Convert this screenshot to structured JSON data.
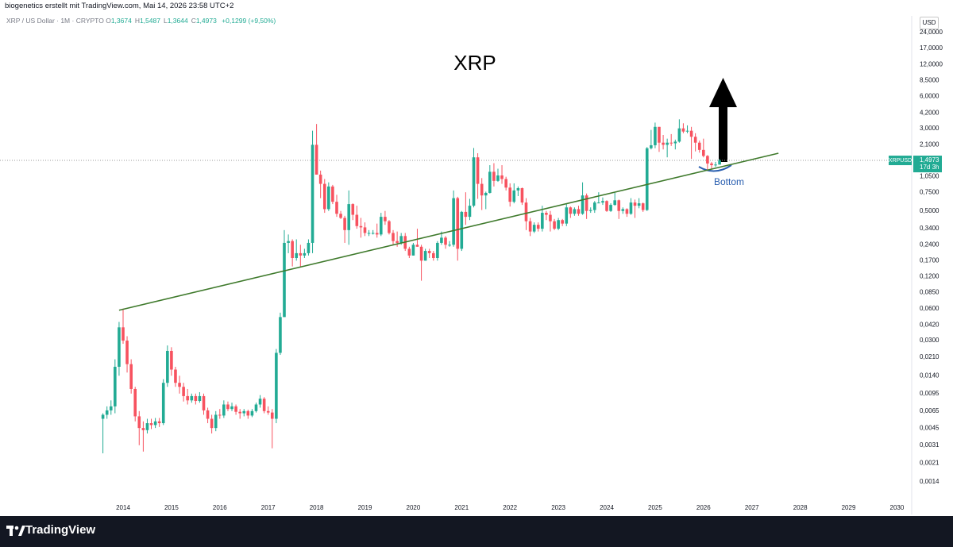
{
  "header": {
    "text": "biogenetics erstellt mit TradingView.com, Mai 14, 2026 23:58 UTC+2",
    "legend": {
      "symbol": "XRP / US Dollar · 1M · CRYPTO",
      "items": [
        {
          "key": "O",
          "value": "1,3674"
        },
        {
          "key": "H",
          "value": "1,5487"
        },
        {
          "key": "L",
          "value": "1,3644"
        },
        {
          "key": "C",
          "value": "1,4973"
        }
      ],
      "change": "+0,1299 (+9,50%)"
    },
    "currency": "USD"
  },
  "footer": {
    "logo": "TradingView"
  },
  "chart_data": {
    "type": "candlestick",
    "title": "XRP",
    "log_scale": true,
    "grid": false,
    "up_color": "#22ab94",
    "down_color": "#f7525f",
    "xlim": [
      2011.455,
      2030.305
    ],
    "xticks": [
      2014,
      2015,
      2016,
      2017,
      2018,
      2019,
      2020,
      2021,
      2022,
      2023,
      2024,
      2025,
      2026,
      2027,
      2028,
      2029,
      2030
    ],
    "ylim": [
      0.00069,
      29
    ],
    "yticks": [
      {
        "value": 24,
        "label": "24,0000"
      },
      {
        "value": 17,
        "label": "17,0000"
      },
      {
        "value": 12,
        "label": "12,0000"
      },
      {
        "value": 8.5,
        "label": "8,5000"
      },
      {
        "value": 6,
        "label": "6,0000"
      },
      {
        "value": 4.2,
        "label": "4,2000"
      },
      {
        "value": 3,
        "label": "3,0000"
      },
      {
        "value": 2.1,
        "label": "2,1000"
      },
      {
        "value": 1.05,
        "label": "1,0500"
      },
      {
        "value": 0.75,
        "label": "0,7500"
      },
      {
        "value": 0.5,
        "label": "0,5000"
      },
      {
        "value": 0.34,
        "label": "0,3400"
      },
      {
        "value": 0.24,
        "label": "0,2400"
      },
      {
        "value": 0.17,
        "label": "0,1700"
      },
      {
        "value": 0.12,
        "label": "0,1200"
      },
      {
        "value": 0.085,
        "label": "0,0850"
      },
      {
        "value": 0.06,
        "label": "0,0600"
      },
      {
        "value": 0.042,
        "label": "0,0420"
      },
      {
        "value": 0.03,
        "label": "0,0300"
      },
      {
        "value": 0.021,
        "label": "0,0210"
      },
      {
        "value": 0.014,
        "label": "0,0140"
      },
      {
        "value": 0.0095,
        "label": "0,0095"
      },
      {
        "value": 0.0065,
        "label": "0,0065"
      },
      {
        "value": 0.0045,
        "label": "0,0045"
      },
      {
        "value": 0.0031,
        "label": "0,0031"
      },
      {
        "value": 0.0021,
        "label": "0,0021"
      },
      {
        "value": 0.0014,
        "label": "0,0014"
      }
    ],
    "price_label": {
      "symbol": "XRPUSD",
      "price": "1,4973",
      "countdown": "17d 3h",
      "color": "#22ab94"
    },
    "trendline": {
      "x": [
        2013.917,
        2027.55
      ],
      "values": [
        0.058,
        1.75
      ],
      "color": "#3f7a2c"
    },
    "annotation": {
      "text": "Bottom",
      "color": "#2a5fb0"
    },
    "x": [
      2013.583,
      2013.667,
      2013.75,
      2013.833,
      2013.917,
      2014.0,
      2014.083,
      2014.167,
      2014.25,
      2014.333,
      2014.417,
      2014.5,
      2014.583,
      2014.667,
      2014.75,
      2014.833,
      2014.917,
      2015.0,
      2015.083,
      2015.167,
      2015.25,
      2015.333,
      2015.417,
      2015.5,
      2015.583,
      2015.667,
      2015.75,
      2015.833,
      2015.917,
      2016.0,
      2016.083,
      2016.167,
      2016.25,
      2016.333,
      2016.417,
      2016.5,
      2016.583,
      2016.667,
      2016.75,
      2016.833,
      2016.917,
      2017.0,
      2017.083,
      2017.167,
      2017.25,
      2017.333,
      2017.417,
      2017.5,
      2017.583,
      2017.667,
      2017.75,
      2017.833,
      2017.917,
      2018.0,
      2018.083,
      2018.167,
      2018.25,
      2018.333,
      2018.417,
      2018.5,
      2018.583,
      2018.667,
      2018.75,
      2018.833,
      2018.917,
      2019.0,
      2019.083,
      2019.167,
      2019.25,
      2019.333,
      2019.417,
      2019.5,
      2019.583,
      2019.667,
      2019.75,
      2019.833,
      2019.917,
      2020.0,
      2020.083,
      2020.167,
      2020.25,
      2020.333,
      2020.417,
      2020.5,
      2020.583,
      2020.667,
      2020.75,
      2020.833,
      2020.917,
      2021.0,
      2021.083,
      2021.167,
      2021.25,
      2021.333,
      2021.417,
      2021.5,
      2021.583,
      2021.667,
      2021.75,
      2021.833,
      2021.917,
      2022.0,
      2022.083,
      2022.167,
      2022.25,
      2022.333,
      2022.417,
      2022.5,
      2022.583,
      2022.667,
      2022.75,
      2022.833,
      2022.917,
      2023.0,
      2023.083,
      2023.167,
      2023.25,
      2023.333,
      2023.417,
      2023.5,
      2023.583,
      2023.667,
      2023.75,
      2023.833,
      2023.917,
      2024.0,
      2024.083,
      2024.167,
      2024.25,
      2024.333,
      2024.417,
      2024.5,
      2024.583,
      2024.667,
      2024.75,
      2024.833,
      2024.917,
      2025.0,
      2025.083,
      2025.167,
      2025.25,
      2025.333,
      2025.417,
      2025.5,
      2025.583,
      2025.667,
      2025.75,
      2025.833,
      2025.917,
      2026.0,
      2026.083,
      2026.167,
      2026.25,
      2026.333
    ],
    "candles": [
      [
        0.0055,
        0.0062,
        0.0026,
        0.006
      ],
      [
        0.006,
        0.0072,
        0.0055,
        0.0066
      ],
      [
        0.0066,
        0.0082,
        0.006,
        0.0072
      ],
      [
        0.0072,
        0.02,
        0.0062,
        0.017
      ],
      [
        0.017,
        0.045,
        0.014,
        0.04
      ],
      [
        0.04,
        0.06,
        0.028,
        0.03
      ],
      [
        0.03,
        0.033,
        0.015,
        0.018
      ],
      [
        0.018,
        0.02,
        0.0095,
        0.0105
      ],
      [
        0.0105,
        0.011,
        0.0052,
        0.0058
      ],
      [
        0.0058,
        0.0065,
        0.0031,
        0.0045
      ],
      [
        0.0045,
        0.0052,
        0.0027,
        0.0043
      ],
      [
        0.0043,
        0.0055,
        0.004,
        0.005
      ],
      [
        0.005,
        0.0055,
        0.0044,
        0.0048
      ],
      [
        0.0048,
        0.0056,
        0.0045,
        0.0052
      ],
      [
        0.0052,
        0.0056,
        0.0046,
        0.005
      ],
      [
        0.005,
        0.013,
        0.0048,
        0.012
      ],
      [
        0.012,
        0.027,
        0.011,
        0.024
      ],
      [
        0.024,
        0.026,
        0.014,
        0.016
      ],
      [
        0.016,
        0.017,
        0.011,
        0.012
      ],
      [
        0.012,
        0.014,
        0.0095,
        0.011
      ],
      [
        0.011,
        0.012,
        0.008,
        0.009
      ],
      [
        0.009,
        0.0105,
        0.0075,
        0.0082
      ],
      [
        0.0082,
        0.0095,
        0.0078,
        0.009
      ],
      [
        0.009,
        0.0095,
        0.0075,
        0.0081
      ],
      [
        0.0081,
        0.0098,
        0.0078,
        0.009
      ],
      [
        0.009,
        0.0095,
        0.006,
        0.0066
      ],
      [
        0.0066,
        0.007,
        0.005,
        0.0055
      ],
      [
        0.0055,
        0.006,
        0.004,
        0.0045
      ],
      [
        0.0045,
        0.0065,
        0.0042,
        0.006
      ],
      [
        0.006,
        0.0068,
        0.0055,
        0.0059
      ],
      [
        0.0059,
        0.0082,
        0.0056,
        0.0075
      ],
      [
        0.0075,
        0.008,
        0.0065,
        0.0068
      ],
      [
        0.0068,
        0.0078,
        0.0065,
        0.0072
      ],
      [
        0.0072,
        0.0075,
        0.006,
        0.0064
      ],
      [
        0.0064,
        0.0068,
        0.0055,
        0.0062
      ],
      [
        0.0062,
        0.0068,
        0.0058,
        0.0065
      ],
      [
        0.0065,
        0.0067,
        0.0055,
        0.0059
      ],
      [
        0.0059,
        0.0068,
        0.0057,
        0.0065
      ],
      [
        0.0065,
        0.0078,
        0.0063,
        0.0075
      ],
      [
        0.0075,
        0.0092,
        0.007,
        0.0085
      ],
      [
        0.0085,
        0.0088,
        0.0062,
        0.0065
      ],
      [
        0.0065,
        0.0072,
        0.006,
        0.0063
      ],
      [
        0.0063,
        0.0068,
        0.0029,
        0.0055
      ],
      [
        0.0055,
        0.025,
        0.005,
        0.023
      ],
      [
        0.023,
        0.055,
        0.022,
        0.05
      ],
      [
        0.05,
        0.33,
        0.05,
        0.25
      ],
      [
        0.25,
        0.3,
        0.2,
        0.26
      ],
      [
        0.26,
        0.27,
        0.15,
        0.18
      ],
      [
        0.18,
        0.27,
        0.17,
        0.2
      ],
      [
        0.2,
        0.24,
        0.15,
        0.19
      ],
      [
        0.19,
        0.22,
        0.18,
        0.2
      ],
      [
        0.2,
        0.27,
        0.19,
        0.25
      ],
      [
        0.25,
        2.85,
        0.2,
        2.1
      ],
      [
        2.1,
        3.3,
        1.1,
        1.1
      ],
      [
        1.1,
        1.2,
        0.66,
        0.9
      ],
      [
        0.9,
        1.0,
        0.48,
        0.52
      ],
      [
        0.52,
        0.93,
        0.5,
        0.85
      ],
      [
        0.85,
        0.88,
        0.58,
        0.61
      ],
      [
        0.61,
        0.71,
        0.44,
        0.47
      ],
      [
        0.47,
        0.5,
        0.42,
        0.43
      ],
      [
        0.43,
        0.45,
        0.25,
        0.33
      ],
      [
        0.33,
        0.78,
        0.24,
        0.58
      ],
      [
        0.58,
        0.59,
        0.41,
        0.46
      ],
      [
        0.46,
        0.56,
        0.34,
        0.36
      ],
      [
        0.36,
        0.43,
        0.28,
        0.35
      ],
      [
        0.35,
        0.39,
        0.29,
        0.31
      ],
      [
        0.31,
        0.33,
        0.29,
        0.31
      ],
      [
        0.31,
        0.33,
        0.3,
        0.31
      ],
      [
        0.31,
        0.38,
        0.28,
        0.3
      ],
      [
        0.3,
        0.48,
        0.29,
        0.44
      ],
      [
        0.44,
        0.5,
        0.37,
        0.4
      ],
      [
        0.4,
        0.41,
        0.3,
        0.31
      ],
      [
        0.31,
        0.33,
        0.24,
        0.26
      ],
      [
        0.26,
        0.32,
        0.23,
        0.25
      ],
      [
        0.25,
        0.31,
        0.24,
        0.29
      ],
      [
        0.29,
        0.31,
        0.21,
        0.22
      ],
      [
        0.22,
        0.23,
        0.18,
        0.19
      ],
      [
        0.19,
        0.25,
        0.19,
        0.24
      ],
      [
        0.24,
        0.34,
        0.23,
        0.23
      ],
      [
        0.23,
        0.24,
        0.11,
        0.17
      ],
      [
        0.17,
        0.22,
        0.17,
        0.21
      ],
      [
        0.21,
        0.22,
        0.18,
        0.2
      ],
      [
        0.2,
        0.21,
        0.17,
        0.18
      ],
      [
        0.18,
        0.26,
        0.17,
        0.25
      ],
      [
        0.25,
        0.32,
        0.24,
        0.28
      ],
      [
        0.28,
        0.29,
        0.22,
        0.24
      ],
      [
        0.24,
        0.26,
        0.23,
        0.24
      ],
      [
        0.24,
        0.78,
        0.23,
        0.66
      ],
      [
        0.66,
        0.68,
        0.17,
        0.22
      ],
      [
        0.22,
        0.5,
        0.21,
        0.49
      ],
      [
        0.49,
        0.75,
        0.37,
        0.44
      ],
      [
        0.44,
        0.65,
        0.41,
        0.56
      ],
      [
        0.56,
        1.96,
        0.54,
        1.6
      ],
      [
        1.6,
        1.75,
        0.65,
        0.9
      ],
      [
        0.9,
        1.02,
        0.51,
        0.7
      ],
      [
        0.7,
        0.76,
        0.52,
        0.74
      ],
      [
        0.74,
        1.35,
        0.73,
        1.17
      ],
      [
        1.17,
        1.41,
        0.85,
        0.96
      ],
      [
        0.96,
        1.25,
        0.94,
        1.08
      ],
      [
        1.08,
        1.35,
        0.9,
        1.0
      ],
      [
        1.0,
        1.05,
        0.78,
        0.83
      ],
      [
        0.83,
        0.91,
        0.55,
        0.61
      ],
      [
        0.61,
        0.91,
        0.59,
        0.78
      ],
      [
        0.78,
        0.85,
        0.69,
        0.82
      ],
      [
        0.82,
        0.83,
        0.57,
        0.6
      ],
      [
        0.6,
        0.66,
        0.33,
        0.4
      ],
      [
        0.4,
        0.43,
        0.29,
        0.32
      ],
      [
        0.32,
        0.39,
        0.31,
        0.37
      ],
      [
        0.37,
        0.39,
        0.32,
        0.34
      ],
      [
        0.34,
        0.56,
        0.32,
        0.48
      ],
      [
        0.48,
        0.5,
        0.41,
        0.46
      ],
      [
        0.46,
        0.5,
        0.32,
        0.4
      ],
      [
        0.4,
        0.42,
        0.33,
        0.34
      ],
      [
        0.34,
        0.43,
        0.33,
        0.41
      ],
      [
        0.41,
        0.42,
        0.36,
        0.38
      ],
      [
        0.38,
        0.58,
        0.36,
        0.54
      ],
      [
        0.54,
        0.55,
        0.43,
        0.47
      ],
      [
        0.47,
        0.54,
        0.45,
        0.52
      ],
      [
        0.52,
        0.56,
        0.45,
        0.47
      ],
      [
        0.47,
        0.93,
        0.46,
        0.7
      ],
      [
        0.7,
        0.73,
        0.42,
        0.5
      ],
      [
        0.5,
        0.54,
        0.48,
        0.51
      ],
      [
        0.51,
        0.62,
        0.48,
        0.6
      ],
      [
        0.6,
        0.75,
        0.59,
        0.6
      ],
      [
        0.6,
        0.67,
        0.57,
        0.62
      ],
      [
        0.62,
        0.63,
        0.49,
        0.5
      ],
      [
        0.5,
        0.59,
        0.49,
        0.57
      ],
      [
        0.57,
        0.74,
        0.56,
        0.63
      ],
      [
        0.63,
        0.64,
        0.42,
        0.5
      ],
      [
        0.5,
        0.54,
        0.47,
        0.52
      ],
      [
        0.52,
        0.53,
        0.44,
        0.47
      ],
      [
        0.47,
        0.66,
        0.46,
        0.6
      ],
      [
        0.6,
        0.64,
        0.43,
        0.56
      ],
      [
        0.56,
        0.66,
        0.53,
        0.59
      ],
      [
        0.59,
        0.6,
        0.49,
        0.51
      ],
      [
        0.51,
        2.0,
        0.5,
        1.95
      ],
      [
        1.95,
        2.9,
        1.9,
        2.08
      ],
      [
        2.08,
        3.4,
        1.95,
        3.1
      ],
      [
        3.1,
        3.1,
        1.8,
        2.2
      ],
      [
        2.2,
        2.6,
        1.9,
        2.1
      ],
      [
        2.1,
        2.4,
        1.6,
        2.2
      ],
      [
        2.2,
        2.65,
        2.05,
        2.17
      ],
      [
        2.17,
        2.35,
        1.9,
        2.25
      ],
      [
        2.25,
        3.65,
        2.2,
        3.0
      ],
      [
        3.0,
        3.35,
        2.7,
        2.8
      ],
      [
        2.8,
        3.2,
        2.7,
        2.85
      ],
      [
        2.85,
        3.1,
        1.55,
        2.5
      ],
      [
        2.5,
        2.7,
        1.82,
        2.2
      ],
      [
        2.2,
        2.3,
        1.77,
        1.88
      ],
      [
        1.88,
        2.4,
        1.6,
        1.65
      ],
      [
        1.65,
        1.68,
        1.2,
        1.4
      ],
      [
        1.4,
        1.45,
        1.25,
        1.35
      ],
      [
        1.35,
        1.45,
        1.3,
        1.3674
      ],
      [
        1.3674,
        1.5487,
        1.3644,
        1.4973
      ]
    ]
  }
}
